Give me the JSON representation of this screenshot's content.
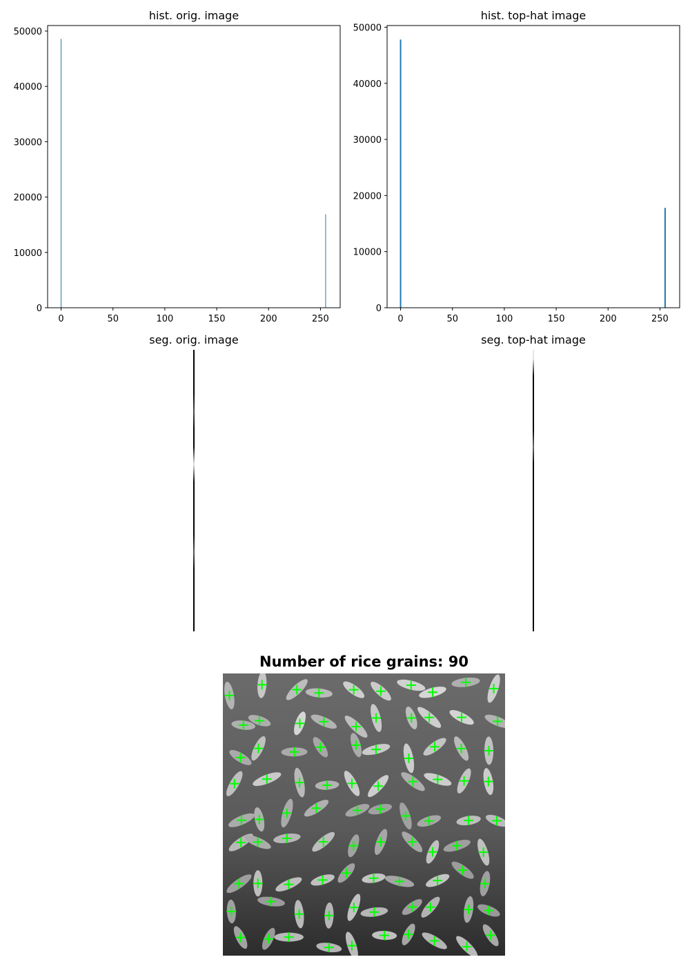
{
  "panels": {
    "hist_orig_title": "hist. orig. image",
    "hist_tophat_title": "hist. top-hat image",
    "seg_orig_title": "seg. orig. image",
    "seg_tophat_title": "seg. top-hat image",
    "result_title": "Number of rice grains: 90"
  },
  "colors": {
    "bar": "#1f77b4",
    "marker": "#00ff00",
    "rice_bg": "#555555"
  },
  "chart_data": [
    {
      "type": "bar",
      "title": "hist. orig. image",
      "xlabel": "",
      "ylabel": "",
      "xlim": [
        -13,
        269
      ],
      "ylim": [
        0,
        51000
      ],
      "xticks": [
        0,
        50,
        100,
        150,
        200,
        250
      ],
      "yticks": [
        0,
        10000,
        20000,
        30000,
        40000,
        50000
      ],
      "x": [
        0,
        255
      ],
      "values": [
        48600,
        16900
      ]
    },
    {
      "type": "bar",
      "title": "hist. top-hat image",
      "xlabel": "",
      "ylabel": "",
      "xlim": [
        -13,
        269
      ],
      "ylim": [
        0,
        50300
      ],
      "xticks": [
        0,
        50,
        100,
        150,
        200,
        250
      ],
      "yticks": [
        0,
        10000,
        20000,
        30000,
        40000,
        50000
      ],
      "x": [
        0,
        255
      ],
      "values": [
        47800,
        17800
      ]
    }
  ],
  "segmentation": {
    "orig_profile": [
      0,
      0,
      0,
      0.3,
      0,
      0,
      0.9,
      0,
      0,
      0,
      0,
      0.35,
      0,
      0,
      0,
      0
    ],
    "tophat_profile": [
      0.9,
      0,
      0,
      0,
      0,
      0.4,
      0,
      0,
      0,
      0,
      0,
      0,
      0,
      0,
      0,
      0
    ]
  },
  "rice_image": {
    "grain_count": 90,
    "marker_glyph": "plus"
  }
}
